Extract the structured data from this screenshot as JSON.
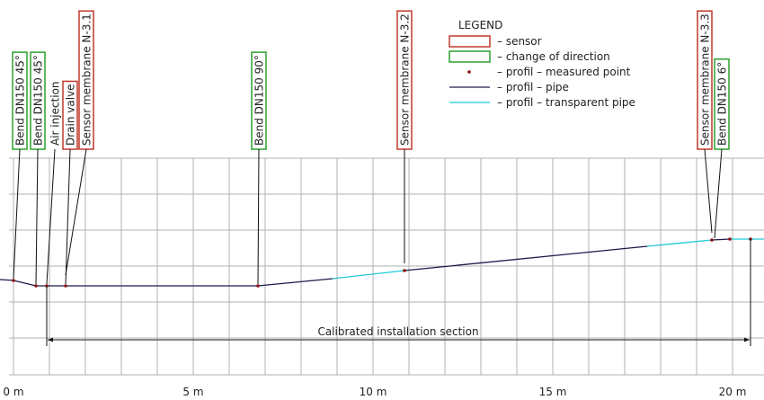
{
  "legend": {
    "title": "LEGEND",
    "items": [
      {
        "label": "– sensor"
      },
      {
        "label": "– change of direction"
      },
      {
        "label": "– profil – measured point"
      },
      {
        "label": "– profil – pipe"
      },
      {
        "label": "– profil – transparent pipe"
      }
    ]
  },
  "labels": [
    {
      "text": "Bend DN150 45°"
    },
    {
      "text": "Bend DN150 45°"
    },
    {
      "text": "Air injection"
    },
    {
      "text": "Drain valve"
    },
    {
      "text": "Sensor membrane N-3.1"
    },
    {
      "text": "Bend DN150 90°"
    },
    {
      "text": "Sensor membrane N-3.2"
    },
    {
      "text": "Sensor membrane N-3.3"
    },
    {
      "text": "Bend DN150 6°"
    }
  ],
  "annotation": "Calibrated installation section",
  "axis_labels": [
    "0 m",
    "5 m",
    "10 m",
    "15 m",
    "20 m"
  ]
}
